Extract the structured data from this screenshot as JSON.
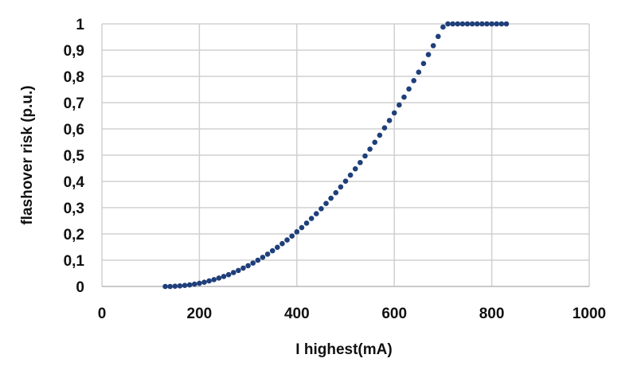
{
  "chart_data": {
    "type": "scatter",
    "title": "",
    "xlabel": "I highest(mA)",
    "ylabel": "flashover risk (p.u.)",
    "xlim": [
      0,
      1000
    ],
    "ylim": [
      0,
      1
    ],
    "grid": true,
    "legend": "none",
    "x_ticks": [
      "0",
      "200",
      "400",
      "600",
      "800",
      "1000"
    ],
    "y_ticks": [
      "0",
      "0,1",
      "0,2",
      "0,3",
      "0,4",
      "0,5",
      "0,6",
      "0,7",
      "0,8",
      "0,9",
      "1"
    ],
    "colors": {
      "series": "#1f3f7a",
      "grid": "#d0d0d0",
      "axis": "#bfbfbf",
      "text": "#111111"
    },
    "series": [
      {
        "x": [
          130,
          140,
          150,
          160,
          170,
          180,
          190,
          200,
          210,
          220,
          230,
          240,
          250,
          260,
          270,
          280,
          290,
          300,
          310,
          320,
          330,
          340,
          350,
          360,
          370,
          380,
          390,
          400,
          410,
          420,
          430,
          440,
          450,
          460,
          470,
          480,
          490,
          500,
          510,
          520,
          530,
          540,
          550,
          560,
          570,
          580,
          590,
          600,
          610,
          620,
          630,
          640,
          650,
          660,
          670,
          680,
          690,
          700,
          710,
          720,
          730,
          740,
          750,
          760,
          770,
          780,
          790,
          800,
          810,
          820,
          830
        ],
        "y": [
          0,
          0,
          0.001,
          0.002,
          0.004,
          0.006,
          0.009,
          0.012,
          0.016,
          0.021,
          0.026,
          0.032,
          0.038,
          0.045,
          0.053,
          0.061,
          0.07,
          0.079,
          0.089,
          0.1,
          0.111,
          0.123,
          0.136,
          0.149,
          0.163,
          0.177,
          0.192,
          0.208,
          0.224,
          0.241,
          0.259,
          0.277,
          0.296,
          0.316,
          0.336,
          0.357,
          0.379,
          0.401,
          0.424,
          0.448,
          0.472,
          0.497,
          0.523,
          0.549,
          0.576,
          0.604,
          0.632,
          0.661,
          0.691,
          0.721,
          0.752,
          0.784,
          0.816,
          0.849,
          0.883,
          0.917,
          0.952,
          0.988,
          1.0,
          1.0,
          1.0,
          1.0,
          1.0,
          1.0,
          1.0,
          1.0,
          1.0,
          1.0,
          1.0,
          1.0,
          1.0
        ]
      }
    ]
  }
}
